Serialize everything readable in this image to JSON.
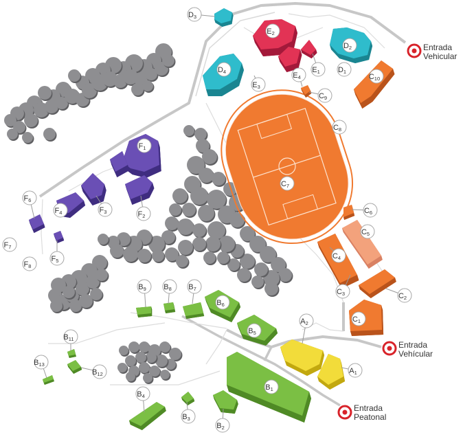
{
  "colors": {
    "tree": "#8e8e91",
    "tree_dark": "#5f5f62",
    "green": "#7bbf44",
    "green_dark": "#4f8a25",
    "orange": "#f07a30",
    "orange_dark": "#b9531b",
    "orange_light": "#f3a27c",
    "yellow": "#f2dc3a",
    "yellow_dark": "#c2a80f",
    "purple": "#6a4fb5",
    "purple_dark": "#3f2d80",
    "cyan": "#2fbccc",
    "cyan_dark": "#1a8591",
    "red": "#e23355",
    "red_dark": "#a3193a",
    "road": "#c7c7c7",
    "path": "#d0d0d0",
    "entrance": "#d8232a"
  },
  "entrances": [
    {
      "id": "entrance-vehicular-north",
      "line1": "Entrada",
      "line2": "Vehicular"
    },
    {
      "id": "entrance-vehicular-east",
      "line1": "Entrada",
      "line2": "Vehícular"
    },
    {
      "id": "entrance-pedestrian",
      "line1": "Entrada",
      "line2": "Peatonal"
    }
  ],
  "labels": [
    {
      "main": "D",
      "sub": "3"
    },
    {
      "main": "E",
      "sub": "2"
    },
    {
      "main": "D",
      "sub": "2"
    },
    {
      "main": "D",
      "sub": "4"
    },
    {
      "main": "E",
      "sub": "1"
    },
    {
      "main": "D",
      "sub": "1"
    },
    {
      "main": "E",
      "sub": "4"
    },
    {
      "main": "C",
      "sub": "10"
    },
    {
      "main": "E",
      "sub": "3"
    },
    {
      "main": "C",
      "sub": "9"
    },
    {
      "main": "C",
      "sub": "8"
    },
    {
      "main": "F",
      "sub": "1"
    },
    {
      "main": "C",
      "sub": "7"
    },
    {
      "main": "F",
      "sub": "6"
    },
    {
      "main": "F",
      "sub": "4"
    },
    {
      "main": "F",
      "sub": "3"
    },
    {
      "main": "F",
      "sub": "2"
    },
    {
      "main": "C",
      "sub": "6"
    },
    {
      "main": "C",
      "sub": "5"
    },
    {
      "main": "F",
      "sub": "7"
    },
    {
      "main": "F",
      "sub": "5"
    },
    {
      "main": "C",
      "sub": "4"
    },
    {
      "main": "F",
      "sub": "8"
    },
    {
      "main": "B",
      "sub": "9"
    },
    {
      "main": "B",
      "sub": "8"
    },
    {
      "main": "B",
      "sub": "7"
    },
    {
      "main": "C",
      "sub": "3"
    },
    {
      "main": "C",
      "sub": "2"
    },
    {
      "main": "B",
      "sub": "6"
    },
    {
      "main": "C",
      "sub": "1"
    },
    {
      "main": "A",
      "sub": "2"
    },
    {
      "main": "B",
      "sub": "5"
    },
    {
      "main": "B",
      "sub": "11"
    },
    {
      "main": "B",
      "sub": "13"
    },
    {
      "main": "B",
      "sub": "12"
    },
    {
      "main": "A",
      "sub": "1"
    },
    {
      "main": "B",
      "sub": "1"
    },
    {
      "main": "B",
      "sub": "4"
    },
    {
      "main": "B",
      "sub": "3"
    },
    {
      "main": "B",
      "sub": "2"
    }
  ]
}
